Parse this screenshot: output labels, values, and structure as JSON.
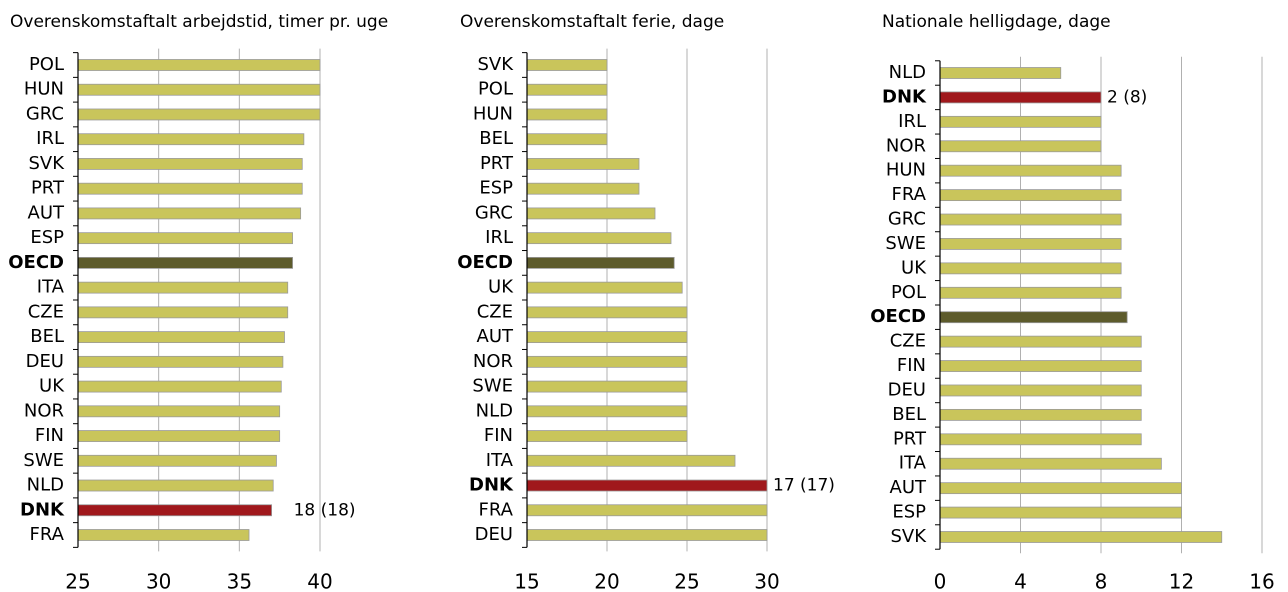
{
  "chart_data": [
    {
      "type": "barh",
      "title": "Overenskomstaftalt arbejdstid, timer pr. uge",
      "categories": [
        "POL",
        "HUN",
        "GRC",
        "IRL",
        "SVK",
        "PRT",
        "AUT",
        "ESP",
        "OECD",
        "ITA",
        "CZE",
        "BEL",
        "DEU",
        "UK",
        "NOR",
        "FIN",
        "SWE",
        "NLD",
        "DNK",
        "FRA"
      ],
      "values": [
        40,
        40,
        40,
        39,
        38.9,
        38.9,
        38.8,
        38.3,
        38.3,
        38,
        38,
        37.8,
        37.7,
        37.6,
        37.5,
        37.5,
        37.3,
        37.1,
        37,
        35.6
      ],
      "color": "#c9c55b",
      "bar_colors": [
        "#c9c55b",
        "#c9c55b",
        "#c9c55b",
        "#c9c55b",
        "#c9c55b",
        "#c9c55b",
        "#c9c55b",
        "#c9c55b",
        "#5d5b2c",
        "#c9c55b",
        "#c9c55b",
        "#c9c55b",
        "#c9c55b",
        "#c9c55b",
        "#c9c55b",
        "#c9c55b",
        "#c9c55b",
        "#c9c55b",
        "#a0181c",
        "#c9c55b"
      ],
      "annotations": [
        {
          "text": "18 (18)",
          "category": "DNK"
        }
      ],
      "xlim": [
        25,
        40
      ],
      "xticks": [
        25,
        30,
        35,
        40
      ],
      "grid": true
    },
    {
      "type": "barh",
      "title": "Overenskomstaftalt ferie, dage",
      "categories": [
        "SVK",
        "POL",
        "HUN",
        "BEL",
        "PRT",
        "ESP",
        "GRC",
        "IRL",
        "OECD",
        "UK",
        "CZE",
        "AUT",
        "NOR",
        "SWE",
        "NLD",
        "FIN",
        "ITA",
        "DNK",
        "FRA",
        "DEU"
      ],
      "values": [
        20,
        20,
        20,
        20,
        22,
        22,
        23,
        24,
        24.2,
        24.7,
        25,
        25,
        25,
        25,
        25,
        25,
        28,
        30,
        30,
        30
      ],
      "color": "#c9c55b",
      "bar_colors": [
        "#c9c55b",
        "#c9c55b",
        "#c9c55b",
        "#c9c55b",
        "#c9c55b",
        "#c9c55b",
        "#c9c55b",
        "#c9c55b",
        "#5d5b2c",
        "#c9c55b",
        "#c9c55b",
        "#c9c55b",
        "#c9c55b",
        "#c9c55b",
        "#c9c55b",
        "#c9c55b",
        "#c9c55b",
        "#a0181c",
        "#c9c55b",
        "#c9c55b"
      ],
      "annotations": [
        {
          "text": "17 (17)",
          "category": "DNK"
        }
      ],
      "xlim": [
        15,
        30
      ],
      "xticks": [
        15,
        20,
        25,
        30
      ],
      "grid": true
    },
    {
      "type": "barh",
      "title": "Nationale helligdage, dage",
      "categories": [
        "NLD",
        "DNK",
        "IRL",
        "NOR",
        "HUN",
        "FRA",
        "GRC",
        "SWE",
        "UK",
        "POL",
        "OECD",
        "CZE",
        "FIN",
        "DEU",
        "BEL",
        "PRT",
        "ITA",
        "AUT",
        "ESP",
        "SVK"
      ],
      "values": [
        6,
        8,
        8,
        8,
        9,
        9,
        9,
        9,
        9,
        9,
        9.3,
        10,
        10,
        10,
        10,
        10,
        11,
        12,
        12,
        14
      ],
      "color": "#c9c55b",
      "bar_colors": [
        "#c9c55b",
        "#a0181c",
        "#c9c55b",
        "#c9c55b",
        "#c9c55b",
        "#c9c55b",
        "#c9c55b",
        "#c9c55b",
        "#c9c55b",
        "#c9c55b",
        "#5d5b2c",
        "#c9c55b",
        "#c9c55b",
        "#c9c55b",
        "#c9c55b",
        "#c9c55b",
        "#c9c55b",
        "#c9c55b",
        "#c9c55b",
        "#c9c55b"
      ],
      "annotations": [
        {
          "text": "2 (8)",
          "category": "DNK"
        }
      ],
      "xlim": [
        0,
        16
      ],
      "xticks": [
        0,
        4,
        8,
        12,
        16
      ],
      "grid": true
    }
  ]
}
